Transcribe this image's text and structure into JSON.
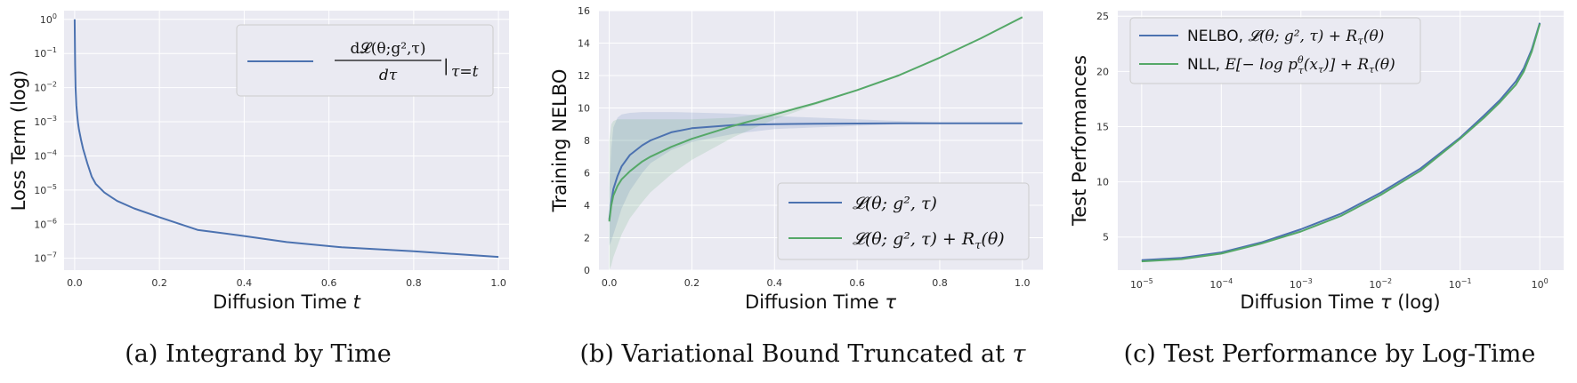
{
  "colors": {
    "blue": "#4c72b0",
    "green": "#55a868",
    "plot_bg": "#eaeaf2",
    "grid": "#ffffff"
  },
  "chart_data": [
    {
      "type": "line",
      "caption_label": "(a)",
      "caption": "Integrand by Time",
      "xlabel_text": "Diffusion Time ",
      "xlabel_math": "t",
      "ylabel": "Loss Term (log)",
      "xscale": "linear",
      "yscale": "log",
      "xlim": [
        -0.025,
        1.025
      ],
      "ylim": [
        4.5e-08,
        1.8
      ],
      "grid": true,
      "legend_position": "upper right",
      "xticks": [
        0.0,
        0.2,
        0.4,
        0.6,
        0.8,
        1.0
      ],
      "xtick_labels": [
        "0.0",
        "0.2",
        "0.4",
        "0.6",
        "0.8",
        "1.0"
      ],
      "yticks": [
        {
          "value": 1,
          "base": "10",
          "exp": "0"
        },
        {
          "value": 0.1,
          "base": "10",
          "exp": "−1"
        },
        {
          "value": 0.01,
          "base": "10",
          "exp": "−2"
        },
        {
          "value": 0.001,
          "base": "10",
          "exp": "−3"
        },
        {
          "value": 0.0001,
          "base": "10",
          "exp": "−4"
        },
        {
          "value": 1e-05,
          "base": "10",
          "exp": "−5"
        },
        {
          "value": 1e-06,
          "base": "10",
          "exp": "−6"
        },
        {
          "value": 1e-07,
          "base": "10",
          "exp": "−7"
        }
      ],
      "series": [
        {
          "color_key": "blue",
          "x": [
            0.0,
            0.001,
            0.002,
            0.004,
            0.006,
            0.008,
            0.01,
            0.015,
            0.02,
            0.03,
            0.04,
            0.05,
            0.07,
            0.1,
            0.14,
            0.2,
            0.29,
            0.4,
            0.5,
            0.63,
            0.8,
            1.0
          ],
          "y": [
            1.0,
            0.05,
            0.01,
            0.003,
            0.0015,
            0.0009,
            0.0006,
            0.0003,
            0.00016,
            6e-05,
            2.5e-05,
            1.5e-05,
            8.5e-06,
            4.8e-06,
            2.9e-06,
            1.6e-06,
            6.8e-07,
            4.5e-07,
            3e-07,
            2.1e-07,
            1.6e-07,
            1.1e-07
          ]
        }
      ],
      "legend_entries": [
        {
          "color_key": "blue",
          "num": "d𝓛(θ;g²,τ)",
          "den": "dτ",
          "suffix": "|",
          "sub": "τ=t"
        }
      ]
    },
    {
      "type": "line",
      "caption_label": "(b)",
      "caption": "Variational Bound Truncated at ",
      "caption_math": "τ",
      "xlabel_text": "Diffusion Time ",
      "xlabel_math": "τ",
      "ylabel": "Training NELBO",
      "xscale": "linear",
      "yscale": "linear",
      "xlim": [
        -0.025,
        1.05
      ],
      "ylim": [
        0,
        16
      ],
      "grid": true,
      "legend_position": "lower right",
      "xticks": [
        0.0,
        0.2,
        0.4,
        0.6,
        0.8,
        1.0
      ],
      "xtick_labels": [
        "0.0",
        "0.2",
        "0.4",
        "0.6",
        "0.8",
        "1.0"
      ],
      "yticks": [
        0,
        2,
        4,
        6,
        8,
        10,
        12,
        14,
        16
      ],
      "ytick_labels": [
        "0",
        "2",
        "4",
        "6",
        "8",
        "10",
        "12",
        "14",
        "16"
      ],
      "series": [
        {
          "color_key": "blue",
          "x": [
            0.0,
            0.005,
            0.01,
            0.02,
            0.03,
            0.05,
            0.08,
            0.1,
            0.15,
            0.2,
            0.3,
            0.4,
            0.5,
            0.6,
            0.7,
            0.8,
            0.9,
            1.0
          ],
          "y": [
            3.1,
            4.2,
            5.0,
            5.8,
            6.4,
            7.1,
            7.7,
            8.0,
            8.5,
            8.75,
            8.95,
            9.0,
            9.03,
            9.04,
            9.05,
            9.05,
            9.05,
            9.05
          ],
          "band_upper": [
            5.0,
            7.5,
            8.8,
            9.4,
            9.6,
            9.7,
            9.75,
            9.75,
            9.75,
            9.72,
            9.65,
            9.5,
            9.4,
            9.3,
            9.2,
            9.1,
            9.05,
            9.05
          ],
          "band_lower": [
            1.5,
            1.8,
            2.2,
            3.0,
            3.8,
            4.9,
            6.0,
            6.6,
            7.4,
            7.9,
            8.4,
            8.7,
            8.8,
            8.9,
            9.0,
            9.03,
            9.05,
            9.05
          ]
        },
        {
          "color_key": "green",
          "x": [
            0.0,
            0.005,
            0.01,
            0.02,
            0.03,
            0.05,
            0.08,
            0.1,
            0.15,
            0.2,
            0.25,
            0.3,
            0.4,
            0.5,
            0.6,
            0.7,
            0.8,
            0.9,
            1.0
          ],
          "y": [
            3.0,
            4.0,
            4.6,
            5.2,
            5.6,
            6.1,
            6.7,
            7.0,
            7.6,
            8.1,
            8.5,
            8.9,
            9.6,
            10.3,
            11.1,
            12.0,
            13.1,
            14.3,
            15.6
          ],
          "band_upper": [
            8.0,
            9.0,
            9.2,
            9.3,
            9.3,
            9.3,
            9.3,
            9.3,
            9.3,
            9.3,
            9.35,
            9.4,
            9.75,
            10.35,
            11.15,
            12.05,
            13.1,
            14.3,
            15.6
          ],
          "band_lower": [
            0.0,
            0.3,
            0.8,
            1.5,
            2.2,
            3.2,
            4.2,
            4.8,
            5.9,
            6.8,
            7.5,
            8.2,
            9.3,
            10.2,
            11.05,
            11.95,
            13.1,
            14.3,
            15.6
          ]
        }
      ],
      "legend_entries": [
        {
          "color_key": "blue",
          "math": "𝓛(θ; g², τ)"
        },
        {
          "color_key": "green",
          "math": "𝓛(θ; g², τ) + R",
          "sub": "τ",
          "tail": "(θ)"
        }
      ]
    },
    {
      "type": "line",
      "caption_label": "(c)",
      "caption": "Test Performance by Log-Time",
      "xlabel_text": "Diffusion Time ",
      "xlabel_math": "τ",
      "xlabel_tail": " (log)",
      "ylabel": "Test Performances",
      "xscale": "log",
      "yscale": "linear",
      "xlim_exp": [
        -5.3,
        0.3
      ],
      "ylim": [
        2,
        25.5
      ],
      "grid": true,
      "legend_position": "upper left",
      "xticks": [
        {
          "value": -5,
          "base": "10",
          "exp": "−5"
        },
        {
          "value": -4,
          "base": "10",
          "exp": "−4"
        },
        {
          "value": -3,
          "base": "10",
          "exp": "−3"
        },
        {
          "value": -2,
          "base": "10",
          "exp": "−2"
        },
        {
          "value": -1,
          "base": "10",
          "exp": "−1"
        },
        {
          "value": 0,
          "base": "10",
          "exp": "0"
        }
      ],
      "yticks": [
        5,
        10,
        15,
        20,
        25
      ],
      "ytick_labels": [
        "5",
        "10",
        "15",
        "20",
        "25"
      ],
      "series": [
        {
          "color_key": "blue",
          "x_log10": [
            -5.0,
            -4.5,
            -4.0,
            -3.5,
            -3.0,
            -2.5,
            -2.0,
            -1.5,
            -1.0,
            -0.7,
            -0.5,
            -0.3,
            -0.2,
            -0.1,
            0.0
          ],
          "y": [
            2.9,
            3.1,
            3.6,
            4.5,
            5.7,
            7.1,
            9.0,
            11.2,
            14.0,
            16.0,
            17.4,
            19.1,
            20.3,
            22.0,
            24.4
          ]
        },
        {
          "color_key": "green",
          "x_log10": [
            -5.0,
            -4.5,
            -4.0,
            -3.5,
            -3.0,
            -2.5,
            -2.0,
            -1.5,
            -1.0,
            -0.7,
            -0.5,
            -0.3,
            -0.2,
            -0.1,
            0.0
          ],
          "y": [
            2.8,
            3.0,
            3.5,
            4.4,
            5.5,
            6.9,
            8.8,
            11.0,
            13.9,
            15.8,
            17.2,
            18.8,
            20.0,
            21.8,
            24.3
          ]
        }
      ],
      "legend_entries": [
        {
          "color_key": "blue",
          "text": "NELBO, ",
          "math": "𝓛(θ; g², τ) + R",
          "sub": "τ",
          "tail": "(θ)"
        },
        {
          "color_key": "green",
          "text": "NLL, ",
          "math": "E[− log p",
          "sup2": "θ",
          "sub": "τ",
          "tail": "(x",
          "sub2": "τ",
          "tail2": ")] + R",
          "sub3": "τ",
          "tail3": "(θ)"
        }
      ]
    }
  ]
}
